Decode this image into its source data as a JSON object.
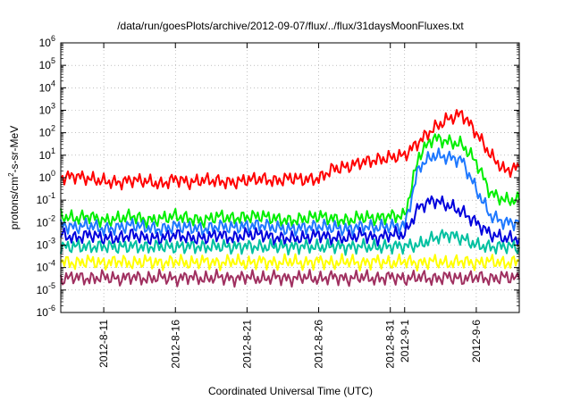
{
  "chart_data": {
    "type": "line",
    "title": "/data/run/goesPlots/archive/2012-09-07/flux/../flux/31daysMoonFluxes.txt",
    "xlabel": "Coordinated Universal Time (UTC)",
    "ylabel": {
      "base": "protons/cm",
      "exp": "2",
      "rest": "-s-sr-MeV"
    },
    "xlim": [
      "2012-08-08",
      "2012-09-09"
    ],
    "ylim": [
      1e-06,
      1000000.0
    ],
    "yscale": "log",
    "grid": true,
    "x_ticks": [
      {
        "date": "2012-08-11",
        "label": "2012-8-11"
      },
      {
        "date": "2012-08-16",
        "label": "2012-8-16"
      },
      {
        "date": "2012-08-21",
        "label": "2012-8-21"
      },
      {
        "date": "2012-08-26",
        "label": "2012-8-26"
      },
      {
        "date": "2012-08-31",
        "label": "2012-8-31"
      },
      {
        "date": "2012-09-01",
        "label": "2012-9-1"
      },
      {
        "date": "2012-09-06",
        "label": "2012-9-6"
      }
    ],
    "y_ticks": [
      {
        "value": 1e-06,
        "base": "10",
        "exp": "-6"
      },
      {
        "value": 1e-05,
        "base": "10",
        "exp": "-5"
      },
      {
        "value": 0.0001,
        "base": "10",
        "exp": "-4"
      },
      {
        "value": 0.001,
        "base": "10",
        "exp": "-3"
      },
      {
        "value": 0.01,
        "base": "10",
        "exp": "-2"
      },
      {
        "value": 0.1,
        "base": "10",
        "exp": "-1"
      },
      {
        "value": 1,
        "base": "10",
        "exp": "0"
      },
      {
        "value": 10.0,
        "base": "10",
        "exp": "1"
      },
      {
        "value": 100.0,
        "base": "10",
        "exp": "2"
      },
      {
        "value": 1000.0,
        "base": "10",
        "exp": "3"
      },
      {
        "value": 10000.0,
        "base": "10",
        "exp": "4"
      },
      {
        "value": 100000.0,
        "base": "10",
        "exp": "5"
      },
      {
        "value": 1000000.0,
        "base": "10",
        "exp": "6"
      }
    ],
    "x": [
      "2012-08-08",
      "2012-08-09",
      "2012-08-10",
      "2012-08-11",
      "2012-08-12",
      "2012-08-13",
      "2012-08-14",
      "2012-08-15",
      "2012-08-16",
      "2012-08-17",
      "2012-08-18",
      "2012-08-19",
      "2012-08-20",
      "2012-08-21",
      "2012-08-22",
      "2012-08-23",
      "2012-08-24",
      "2012-08-25",
      "2012-08-26",
      "2012-08-27",
      "2012-08-28",
      "2012-08-29",
      "2012-08-30",
      "2012-08-31",
      "2012-09-01",
      "2012-09-02",
      "2012-09-03",
      "2012-09-04",
      "2012-09-05",
      "2012-09-06",
      "2012-09-07",
      "2012-09-08",
      "2012-09-09"
    ],
    "series": [
      {
        "color": "#ff0000",
        "values": [
          1.0,
          1.2,
          0.9,
          0.7,
          0.6,
          0.8,
          0.7,
          0.5,
          0.9,
          0.6,
          0.8,
          0.7,
          0.6,
          0.8,
          0.9,
          0.7,
          1.0,
          0.8,
          0.9,
          2.5,
          3.0,
          5.0,
          6.0,
          8.0,
          10,
          40,
          150,
          400,
          700,
          100,
          10,
          2.0,
          3.0
        ]
      },
      {
        "color": "#00ee00",
        "values": [
          0.02,
          0.015,
          0.02,
          0.012,
          0.015,
          0.02,
          0.012,
          0.015,
          0.02,
          0.015,
          0.012,
          0.02,
          0.015,
          0.018,
          0.02,
          0.015,
          0.012,
          0.015,
          0.02,
          0.015,
          0.012,
          0.018,
          0.015,
          0.02,
          0.02,
          10,
          60,
          40,
          30,
          5,
          0.2,
          0.1,
          0.1
        ]
      },
      {
        "color": "#1e78ff",
        "values": [
          0.008,
          0.006,
          0.008,
          0.005,
          0.006,
          0.008,
          0.006,
          0.005,
          0.007,
          0.006,
          0.005,
          0.007,
          0.006,
          0.007,
          0.008,
          0.006,
          0.005,
          0.006,
          0.007,
          0.006,
          0.005,
          0.007,
          0.006,
          0.007,
          0.007,
          3.0,
          10,
          8,
          6,
          0.3,
          0.02,
          0.01,
          0.01
        ]
      },
      {
        "color": "#0000dd",
        "values": [
          0.003,
          0.002,
          0.003,
          0.002,
          0.002,
          0.003,
          0.002,
          0.002,
          0.003,
          0.002,
          0.002,
          0.003,
          0.002,
          0.003,
          0.003,
          0.002,
          0.002,
          0.002,
          0.003,
          0.002,
          0.002,
          0.003,
          0.002,
          0.003,
          0.003,
          0.05,
          0.1,
          0.06,
          0.03,
          0.01,
          0.003,
          0.002,
          0.002
        ]
      },
      {
        "color": "#00c0a0",
        "values": [
          0.0008,
          0.0009,
          0.0008,
          0.0009,
          0.0008,
          0.0009,
          0.0008,
          0.0009,
          0.0008,
          0.0009,
          0.0008,
          0.0009,
          0.0008,
          0.0009,
          0.0008,
          0.0009,
          0.0008,
          0.0009,
          0.0008,
          0.0009,
          0.0008,
          0.0009,
          0.0008,
          0.0009,
          0.0009,
          0.001,
          0.002,
          0.003,
          0.002,
          0.001,
          0.0008,
          0.0009,
          0.0008
        ]
      },
      {
        "color": "#ffff00",
        "values": [
          0.0002,
          0.00015,
          0.0002,
          0.00015,
          0.0002,
          0.00015,
          0.0002,
          0.00015,
          0.0002,
          0.00015,
          0.0002,
          0.00015,
          0.0002,
          0.00015,
          0.0002,
          0.00015,
          0.0002,
          0.00015,
          0.0002,
          0.00015,
          0.0002,
          0.00015,
          0.0002,
          0.00015,
          0.0002,
          0.00015,
          0.0002,
          0.00015,
          0.0002,
          0.00015,
          0.0002,
          0.00015,
          0.0002
        ]
      },
      {
        "color": "#a03060",
        "values": [
          3e-05,
          4e-05,
          3e-05,
          4e-05,
          3e-05,
          4e-05,
          3e-05,
          4e-05,
          3e-05,
          4e-05,
          3e-05,
          4e-05,
          3e-05,
          4e-05,
          3e-05,
          4e-05,
          3e-05,
          4e-05,
          3e-05,
          4e-05,
          3e-05,
          4e-05,
          3e-05,
          4e-05,
          3e-05,
          4e-05,
          3e-05,
          4e-05,
          3e-05,
          4e-05,
          3e-05,
          4e-05,
          3e-05
        ]
      }
    ]
  }
}
